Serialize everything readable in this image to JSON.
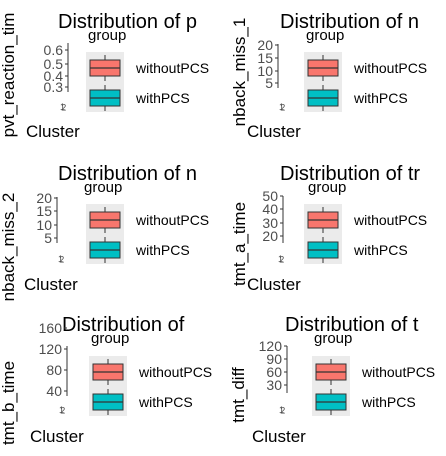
{
  "chart_data": [
    {
      "type": "box",
      "title": "Distribution of p",
      "ylabel": "pvt_reaction_tim",
      "xlabel": "Cluster",
      "yticks": [
        "0.3",
        "0.4",
        "0.5",
        "0.6"
      ],
      "xticks": [
        "1",
        "2"
      ],
      "legend": {
        "title": "group",
        "entries": [
          {
            "label": "withoutPCS",
            "color": "#F8766D"
          },
          {
            "label": "withPCS",
            "color": "#00BFC4"
          }
        ]
      }
    },
    {
      "type": "box",
      "title": "Distribution of n",
      "ylabel": "nback_miss_1",
      "xlabel": "Cluster",
      "yticks": [
        "5",
        "10",
        "15",
        "20"
      ],
      "xticks": [
        "1",
        "2"
      ],
      "legend": {
        "title": "group",
        "entries": [
          {
            "label": "withoutPCS",
            "color": "#F8766D"
          },
          {
            "label": "withPCS",
            "color": "#00BFC4"
          }
        ]
      }
    },
    {
      "type": "box",
      "title": "Distribution of n",
      "ylabel": "nback_miss_2",
      "xlabel": "Cluster",
      "yticks": [
        "5",
        "10",
        "15",
        "20"
      ],
      "xticks": [
        "1",
        "2"
      ],
      "legend": {
        "title": "group",
        "entries": [
          {
            "label": "withoutPCS",
            "color": "#F8766D"
          },
          {
            "label": "withPCS",
            "color": "#00BFC4"
          }
        ]
      }
    },
    {
      "type": "box",
      "title": "Distribution of tr",
      "ylabel": "tmt_a_time",
      "xlabel": "Cluster",
      "yticks": [
        "20",
        "30",
        "40",
        "50"
      ],
      "xticks": [
        "1",
        "2"
      ],
      "legend": {
        "title": "group",
        "entries": [
          {
            "label": "withoutPCS",
            "color": "#F8766D"
          },
          {
            "label": "withPCS",
            "color": "#00BFC4"
          }
        ]
      }
    },
    {
      "type": "box",
      "title": "Distribution of",
      "ylabel": "tmt_b_time",
      "xlabel": "Cluster",
      "yticks": [
        "40",
        "80",
        "120",
        "160"
      ],
      "xticks": [
        "1",
        "2"
      ],
      "legend": {
        "title": "group",
        "entries": [
          {
            "label": "withoutPCS",
            "color": "#F8766D"
          },
          {
            "label": "withPCS",
            "color": "#00BFC4"
          }
        ]
      }
    },
    {
      "type": "box",
      "title": "Distribution of t",
      "ylabel": "tmt_diff",
      "xlabel": "Cluster",
      "yticks": [
        "30",
        "60",
        "90",
        "120"
      ],
      "xticks": [
        "1",
        "2"
      ],
      "legend": {
        "title": "group",
        "entries": [
          {
            "label": "withoutPCS",
            "color": "#F8766D"
          },
          {
            "label": "withPCS",
            "color": "#00BFC4"
          }
        ]
      }
    }
  ]
}
